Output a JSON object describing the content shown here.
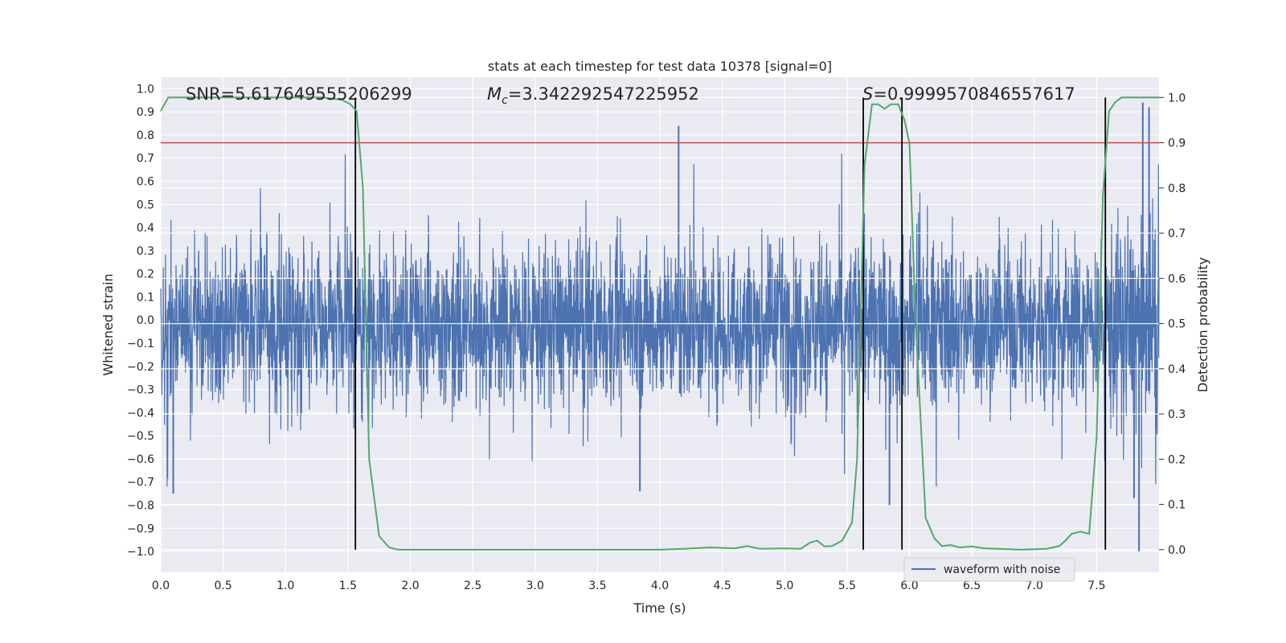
{
  "chart_data": {
    "type": "line",
    "title": "stats at each timestep for test data 10378 [signal=0]",
    "xlabel": "Time (s)",
    "ylabel_left": "Whitened strain",
    "ylabel_right": "Detection probability",
    "xlim": [
      0.0,
      8.0
    ],
    "ylim_left": [
      -1.09,
      1.05
    ],
    "ylim_right": [
      -0.05,
      1.045
    ],
    "x_ticks": [
      "0.0",
      "0.5",
      "1.0",
      "1.5",
      "2.0",
      "2.5",
      "3.0",
      "3.5",
      "4.0",
      "4.5",
      "5.0",
      "5.5",
      "6.0",
      "6.5",
      "7.0",
      "7.5"
    ],
    "y_left_ticks": [
      "1.0",
      "0.9",
      "0.8",
      "0.7",
      "0.6",
      "0.5",
      "0.4",
      "0.3",
      "0.2",
      "0.1",
      "0.0",
      "−0.1",
      "−0.2",
      "−0.3",
      "−0.4",
      "−0.5",
      "−0.6",
      "−0.7",
      "−0.8",
      "−0.9",
      "−1.0"
    ],
    "y_right_ticks": [
      "0.0",
      "0.1",
      "0.2",
      "0.3",
      "0.4",
      "0.5",
      "0.6",
      "0.7",
      "0.8",
      "0.9",
      "1.0"
    ],
    "grid": true,
    "annotations": {
      "snr": "SNR=5.617649555206299",
      "mc_symbol": "M",
      "mc_sub": "c",
      "mc_value": "=3.342292547225952",
      "s_symbol": "S",
      "s_value": "=0.9999570846557617"
    },
    "threshold": 0.9,
    "vertical_lines_x": [
      1.56,
      5.63,
      5.94,
      7.57
    ],
    "legend": {
      "label": "waveform with noise",
      "position": "lower-right"
    },
    "series": [
      {
        "name": "waveform with noise",
        "axis": "left",
        "color": "#4c72b0",
        "peaks": [
          {
            "x": 4.15,
            "y": 0.84
          },
          {
            "x": 7.87,
            "y": 0.94
          },
          {
            "x": 7.92,
            "y": 0.92
          },
          {
            "x": 0.1,
            "y": -0.75
          },
          {
            "x": 3.84,
            "y": -0.74
          },
          {
            "x": 7.84,
            "y": -1.0
          },
          {
            "x": 7.8,
            "y": -0.77
          },
          {
            "x": 5.84,
            "y": -0.8
          }
        ]
      },
      {
        "name": "detection probability",
        "axis": "right",
        "color": "#55a868",
        "x": [
          0.0,
          0.06,
          0.2,
          0.5,
          1.0,
          1.3,
          1.45,
          1.52,
          1.57,
          1.62,
          1.67,
          1.75,
          1.83,
          1.9,
          2.0,
          2.2,
          2.5,
          3.0,
          3.5,
          4.0,
          4.2,
          4.4,
          4.6,
          4.7,
          4.8,
          5.0,
          5.13,
          5.2,
          5.26,
          5.32,
          5.38,
          5.46,
          5.54,
          5.58,
          5.64,
          5.7,
          5.75,
          5.8,
          5.85,
          5.91,
          5.96,
          6.0,
          6.05,
          6.13,
          6.2,
          6.26,
          6.33,
          6.4,
          6.5,
          6.6,
          6.7,
          6.9,
          7.1,
          7.2,
          7.25,
          7.3,
          7.37,
          7.44,
          7.5,
          7.55,
          7.6,
          7.65,
          7.7,
          7.8,
          7.9,
          8.0
        ],
        "y": [
          0.97,
          1.0,
          1.0,
          1.0,
          1.0,
          1.0,
          0.995,
          0.985,
          0.97,
          0.8,
          0.2,
          0.03,
          0.005,
          0.0,
          0.0,
          0.0,
          0.0,
          0.0,
          0.0,
          0.0,
          0.002,
          0.005,
          0.003,
          0.008,
          0.002,
          0.003,
          0.002,
          0.015,
          0.02,
          0.007,
          0.008,
          0.02,
          0.06,
          0.2,
          0.85,
          0.985,
          0.985,
          0.975,
          0.985,
          0.985,
          0.95,
          0.9,
          0.5,
          0.07,
          0.025,
          0.008,
          0.01,
          0.005,
          0.007,
          0.003,
          0.002,
          0.0,
          0.002,
          0.008,
          0.02,
          0.035,
          0.04,
          0.035,
          0.25,
          0.78,
          0.97,
          0.99,
          1.0,
          1.0,
          1.0,
          1.0
        ]
      }
    ]
  }
}
